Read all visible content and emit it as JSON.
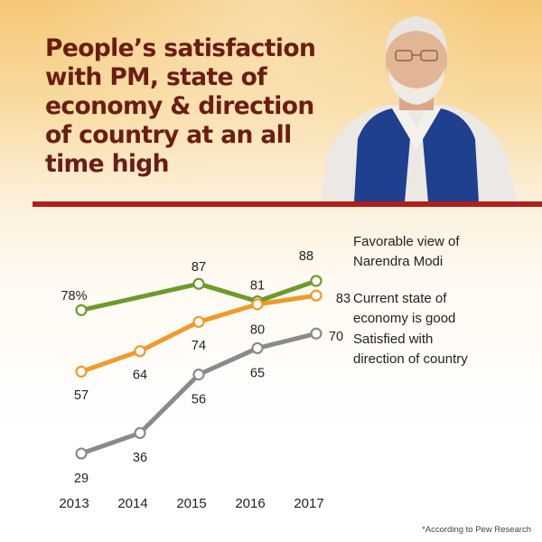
{
  "headline": "People’s satisfaction with PM, state of economy & direction of country at an all time high",
  "footnote": "*According to Pew Research",
  "chart_data": {
    "type": "line",
    "x": [
      "2013",
      "2014",
      "2015",
      "2016",
      "2017"
    ],
    "series": [
      {
        "name": "Favorable view of Narendra Modi",
        "name_lines": [
          "Favorable view of",
          "Narendra Modi"
        ],
        "color": "#6e9a2c",
        "values": [
          78,
          null,
          87,
          81,
          88
        ],
        "labels": [
          "78%",
          "",
          "87",
          "81",
          "88"
        ]
      },
      {
        "name": "Current state of economy is good",
        "name_lines": [
          "Current state of",
          "economy is good"
        ],
        "color": "#ef9a2a",
        "values": [
          57,
          64,
          74,
          80,
          83
        ],
        "labels": [
          "57",
          "64",
          "74",
          "80",
          "83"
        ]
      },
      {
        "name": "Satisfied with direction of country",
        "name_lines": [
          "Satisfied with",
          "direction of country"
        ],
        "color": "#8a8a8a",
        "values": [
          29,
          36,
          56,
          65,
          70
        ],
        "labels": [
          "29",
          "36",
          "56",
          "65",
          "70"
        ]
      }
    ],
    "ylim": [
      25,
      92
    ],
    "grid": false,
    "legend": "right"
  }
}
